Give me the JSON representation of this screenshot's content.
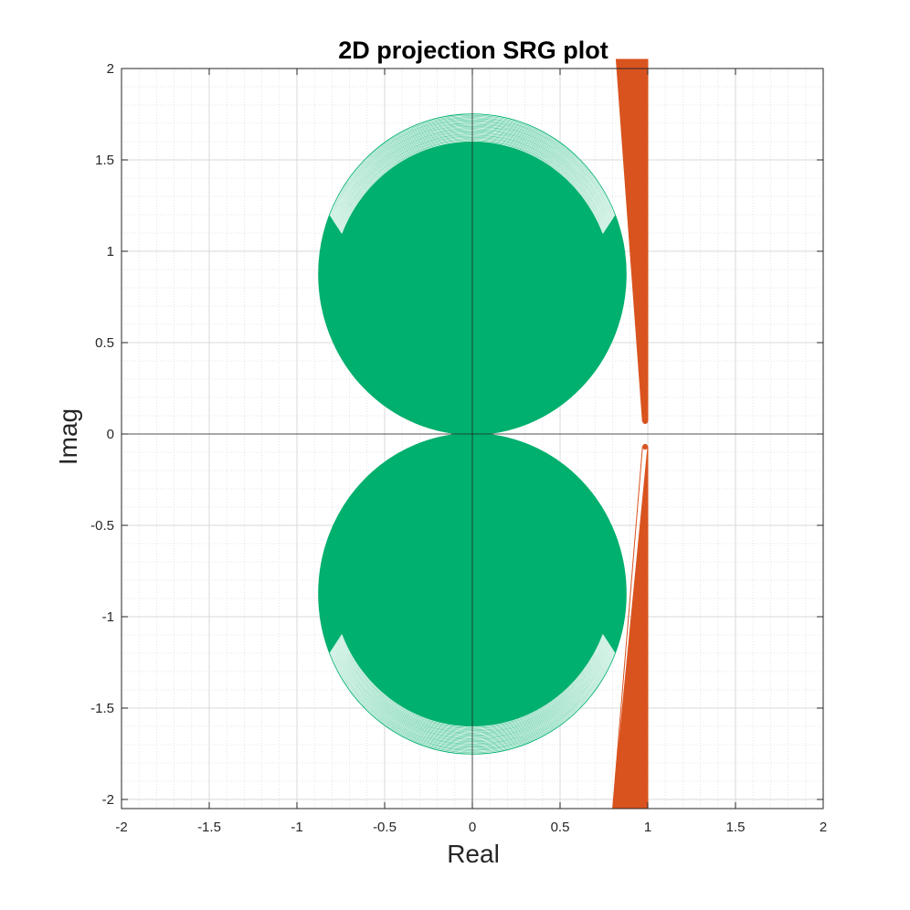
{
  "chart_data": {
    "type": "region",
    "title": "2D projection SRG plot",
    "xlabel": "Real",
    "ylabel": "Imag",
    "xlim": [
      -2,
      2
    ],
    "ylim": [
      -2.05,
      2
    ],
    "xticks": [
      -2,
      -1.5,
      -1,
      -0.5,
      0,
      0.5,
      1,
      1.5,
      2
    ],
    "xtick_labels": [
      "-2",
      "-1.5",
      "-1",
      "-0.5",
      "0",
      "0.5",
      "1",
      "1.5",
      "2"
    ],
    "yticks": [
      -2,
      -1.5,
      -1,
      -0.5,
      0,
      0.5,
      1,
      1.5,
      2
    ],
    "ytick_labels": [
      "-2",
      "-1.5",
      "-1",
      "-0.5",
      "0",
      "0.5",
      "1",
      "1.5",
      "2"
    ],
    "grid": "major and minor",
    "regions": [
      {
        "shape": "disc-family",
        "color": "#00b06e",
        "description_values": {
          "center_x": 0,
          "center_y_min": 0.875,
          "center_y_max": 0.875,
          "radius_min": 0.8,
          "radius_max": 0.875,
          "count": 26,
          "y_top_min": 1.55,
          "y_top_max": 1.75
        },
        "mirror": false
      },
      {
        "shape": "disc-family",
        "color": "#00b06e",
        "description_values": {
          "center_x": 0,
          "center_y_min": -0.875,
          "center_y_max": -0.875,
          "radius_min": 0.8,
          "radius_max": 0.875,
          "count": 26,
          "y_top_min": -1.75,
          "y_top_max": -1.55
        },
        "mirror": true
      },
      {
        "shape": "band",
        "color": "#d9531e",
        "upper_outer": [
          [
            0.82,
            2.05
          ],
          [
            1.0,
            2.05
          ],
          [
            1.0,
            0.07
          ]
        ],
        "upper_inner": [
          [
            0.97,
            0.07
          ],
          [
            0.82,
            2.05
          ]
        ],
        "lower_outer": [
          [
            1.0,
            -0.07
          ],
          [
            1.0,
            -2.05
          ],
          [
            0.8,
            -2.05
          ]
        ],
        "lower_inner": [
          [
            0.97,
            -0.07
          ],
          [
            0.8,
            -2.05
          ]
        ]
      }
    ]
  }
}
